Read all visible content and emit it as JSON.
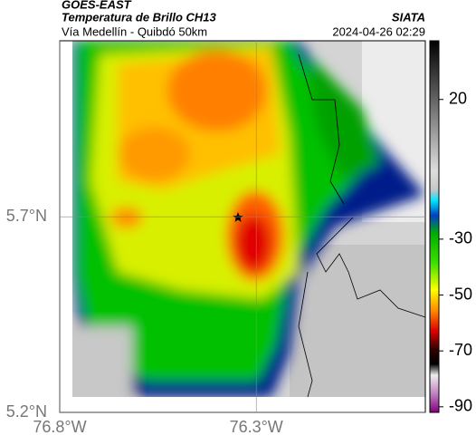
{
  "header": {
    "satellite": "GOES-EAST",
    "product": "Temperatura de Brillo CH13",
    "source": "SIATA",
    "route": "Vía Medellín - Quibdó 50km",
    "datetime": "2024-04-26 02:29"
  },
  "map": {
    "xlim": [
      -76.8,
      -75.87
    ],
    "ylim": [
      5.2,
      6.15
    ],
    "xticks": [
      {
        "value": -76.8,
        "label": "76.8°W"
      },
      {
        "value": -76.3,
        "label": "76.3°W"
      }
    ],
    "yticks": [
      {
        "value": 5.2,
        "label": "5.2°N"
      },
      {
        "value": 5.7,
        "label": "5.7°N"
      }
    ]
  },
  "colorbar": {
    "lim": [
      -92,
      41
    ],
    "ticks": [
      20,
      -30,
      -50,
      -70,
      -90
    ]
  }
}
